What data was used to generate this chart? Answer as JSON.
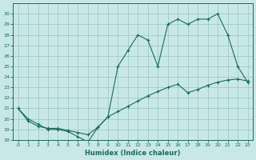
{
  "xlabel": "Humidex (Indice chaleur)",
  "x_upper": [
    0,
    1,
    2,
    3,
    4,
    5,
    6,
    7,
    8,
    9,
    10,
    11,
    12,
    13,
    14,
    15,
    16,
    17,
    18,
    19,
    20,
    21,
    22,
    23
  ],
  "y_upper": [
    21,
    20,
    19.5,
    19,
    19,
    18.8,
    18.3,
    17.8,
    19.2,
    20.2,
    25,
    26.5,
    28,
    27.5,
    25,
    29,
    29.5,
    29,
    29.5,
    29.5,
    30,
    28,
    25,
    23.5
  ],
  "x_lower": [
    0,
    1,
    2,
    3,
    4,
    5,
    6,
    7,
    8,
    9,
    10,
    11,
    12,
    13,
    14,
    15,
    16,
    17,
    18,
    19,
    20,
    21,
    22,
    23
  ],
  "y_lower": [
    21,
    19.8,
    19.3,
    19.1,
    19.1,
    18.9,
    18.7,
    18.5,
    19.2,
    20.2,
    20.7,
    21.2,
    21.7,
    22.2,
    22.6,
    23.0,
    23.3,
    22.5,
    22.8,
    23.2,
    23.5,
    23.7,
    23.8,
    23.6
  ],
  "line_color": "#1a6b5a",
  "bg_color": "#c8e8e8",
  "grid_color": "#a0c8c8",
  "ylim": [
    18,
    31
  ],
  "xlim_min": -0.5,
  "xlim_max": 23.5,
  "yticks": [
    18,
    19,
    20,
    21,
    22,
    23,
    24,
    25,
    26,
    27,
    28,
    29,
    30
  ],
  "xticks": [
    0,
    1,
    2,
    3,
    4,
    5,
    6,
    7,
    8,
    9,
    10,
    11,
    12,
    13,
    14,
    15,
    16,
    17,
    18,
    19,
    20,
    21,
    22,
    23
  ]
}
